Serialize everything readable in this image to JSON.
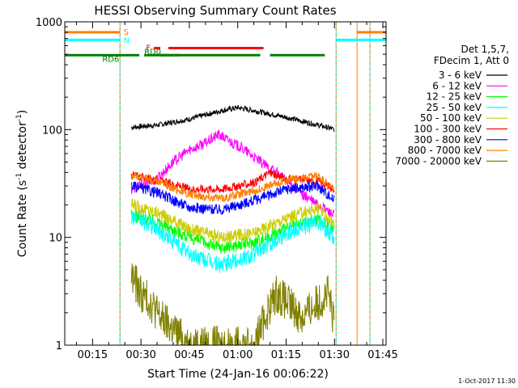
{
  "chart_data": {
    "type": "line",
    "title": "HESSI Observing Summary Count Rates",
    "xlabel": "Start Time (24-Jan-16 00:06:22)",
    "ylabel_main": "Count Rate (s",
    "ylabel_sup1": "-1",
    "ylabel_mid": " detector",
    "ylabel_sup2": "-1",
    "ylabel_end": ")",
    "y_scale": "log",
    "ylim": [
      1,
      1000
    ],
    "y_ticks": [
      "1",
      "10",
      "100",
      "1000"
    ],
    "x_range_minutes": [
      6.37,
      106.0
    ],
    "x_ticks": [
      {
        "label": "00:15",
        "minutes": 15
      },
      {
        "label": "00:30",
        "minutes": 30
      },
      {
        "label": "00:45",
        "minutes": 45
      },
      {
        "label": "01:00",
        "minutes": 60
      },
      {
        "label": "01:15",
        "minutes": 75
      },
      {
        "label": "01:30",
        "minutes": 90
      },
      {
        "label": "01:45",
        "minutes": 105
      }
    ],
    "legend_header": [
      "Det 1,5,7,",
      "FDecim 1, Att 0"
    ],
    "series": [
      {
        "name": "3 - 6 keV",
        "color": "#000000",
        "x": [
          27,
          35,
          45,
          55,
          60,
          65,
          75,
          85,
          90
        ],
        "values": [
          105,
          110,
          125,
          150,
          160,
          150,
          130,
          110,
          100
        ]
      },
      {
        "name": "6 - 12 keV",
        "color": "#ff00ff",
        "x": [
          27,
          35,
          40,
          45,
          50,
          54,
          57,
          62,
          67,
          72,
          80,
          85,
          90
        ],
        "values": [
          28,
          35,
          50,
          65,
          75,
          90,
          80,
          65,
          50,
          40,
          25,
          20,
          16
        ]
      },
      {
        "name": "12 - 25 keV",
        "color": "#00ff00",
        "x": [
          27,
          35,
          45,
          55,
          65,
          75,
          85,
          90
        ],
        "values": [
          16,
          14,
          10,
          8,
          9,
          12,
          15,
          12
        ]
      },
      {
        "name": "25 - 50 keV",
        "color": "#00ffff",
        "x": [
          27,
          35,
          45,
          55,
          65,
          75,
          85,
          90
        ],
        "values": [
          16,
          12,
          7,
          5.5,
          7,
          11,
          14,
          10
        ]
      },
      {
        "name": "50 - 100 keV",
        "color": "#cccc00",
        "x": [
          27,
          35,
          45,
          55,
          65,
          75,
          85,
          90
        ],
        "values": [
          20,
          17,
          12,
          10,
          11,
          15,
          19,
          13
        ]
      },
      {
        "name": "100 - 300 keV",
        "color": "#ff0000",
        "x": [
          27,
          35,
          45,
          55,
          65,
          70,
          75,
          85,
          90
        ],
        "values": [
          38,
          34,
          28,
          28,
          32,
          40,
          35,
          33,
          28
        ]
      },
      {
        "name": "300 - 800 keV",
        "color": "#0000ff",
        "x": [
          27,
          35,
          45,
          55,
          65,
          75,
          85,
          90
        ],
        "values": [
          30,
          26,
          19,
          18,
          22,
          28,
          30,
          22
        ]
      },
      {
        "name": "800 - 7000 keV",
        "color": "#ff8000",
        "x": [
          27,
          35,
          45,
          55,
          65,
          75,
          85,
          90
        ],
        "values": [
          38,
          33,
          25,
          23,
          27,
          34,
          37,
          27
        ]
      },
      {
        "name": "7000 - 20000 keV",
        "color": "#808000",
        "x": [
          27,
          30,
          33,
          36,
          45,
          55,
          65,
          69,
          72,
          75,
          80,
          85,
          88,
          90
        ],
        "values": [
          4.5,
          3,
          2.5,
          1.8,
          1,
          1,
          1,
          2,
          3,
          2.5,
          1.8,
          2.5,
          3,
          1.5
        ]
      }
    ],
    "state_bars": [
      {
        "label": "S",
        "color": "#ff8000",
        "y": 800,
        "segments": [
          [
            6.37,
            23.5
          ],
          [
            97,
            106
          ]
        ]
      },
      {
        "label": "N",
        "color": "#00ffff",
        "y": 680,
        "segments": [
          [
            6.37,
            23.5
          ],
          [
            90.5,
            106
          ]
        ]
      },
      {
        "label": "F",
        "color": "#ff0000",
        "y": 570,
        "segments": [
          [
            34,
            36
          ],
          [
            38.5,
            68
          ]
        ]
      },
      {
        "label": "RD0",
        "color": "#008000",
        "y": 490,
        "segments": [
          [
            36,
            67
          ]
        ]
      },
      {
        "label": "RD6",
        "color": "#008000",
        "y": 490,
        "segments": [
          [
            6.37,
            29.5
          ],
          [
            31,
            42
          ],
          [
            70,
            87
          ]
        ]
      }
    ],
    "vertical_lines": [
      {
        "minutes": 23.5,
        "color": "#00ffff",
        "dashed": false
      },
      {
        "minutes": 23.5,
        "color": "#ff8000",
        "dashed": true
      },
      {
        "minutes": 90.5,
        "color": "#00ffff",
        "dashed": false
      },
      {
        "minutes": 90.5,
        "color": "#ff8000",
        "dashed": true
      },
      {
        "minutes": 97,
        "color": "#ff8000",
        "dashed": false
      },
      {
        "minutes": 101,
        "color": "#00ffff",
        "dashed": false
      },
      {
        "minutes": 101,
        "color": "#ff8000",
        "dashed": true
      }
    ],
    "grid": false,
    "legend_placement": "right"
  },
  "footer_timestamp": "1-Oct-2017 11:30"
}
